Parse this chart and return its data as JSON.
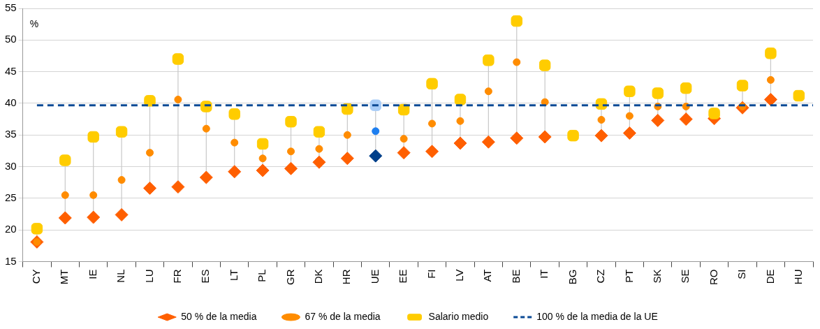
{
  "chart_data": {
    "type": "scatter",
    "ylabel": "%",
    "categories": [
      "CY",
      "MT",
      "IE",
      "NL",
      "LU",
      "FR",
      "ES",
      "LT",
      "PL",
      "GR",
      "DK",
      "HR",
      "UE",
      "EE",
      "FI",
      "LV",
      "AT",
      "BE",
      "IT",
      "BG",
      "CZ",
      "PT",
      "SK",
      "SE",
      "RO",
      "SI",
      "DE",
      "HU"
    ],
    "series": [
      {
        "name": "50 % de la media",
        "color": "#ff5f00",
        "marker": "diamond",
        "colors": [
          "#ff5f00",
          "#ff5f00",
          "#ff5f00",
          "#ff5f00",
          "#ff5f00",
          "#ff5f00",
          "#ff5f00",
          "#ff5f00",
          "#ff5f00",
          "#ff5f00",
          "#ff5f00",
          "#ff5f00",
          "#003f8a",
          "#ff5f00",
          "#ff5f00",
          "#ff5f00",
          "#ff5f00",
          "#ff5f00",
          "#ff5f00",
          "#ff5f00",
          "#ff5f00",
          "#ff5f00",
          "#ff5f00",
          "#ff5f00",
          "#ff5f00",
          "#ff5f00",
          "#ff5f00",
          "#ff5f00"
        ],
        "values": [
          18.1,
          21.9,
          22.0,
          22.4,
          26.6,
          26.8,
          28.3,
          29.2,
          29.4,
          29.7,
          30.7,
          31.3,
          31.7,
          32.2,
          32.4,
          33.7,
          33.9,
          34.5,
          34.7,
          null,
          34.9,
          35.3,
          37.3,
          37.5,
          37.6,
          39.3,
          40.6,
          null
        ]
      },
      {
        "name": "67 % de la media",
        "color": "#ff8c00",
        "marker": "circle",
        "colors": [
          "#ff8c00",
          "#ff8c00",
          "#ff8c00",
          "#ff8c00",
          "#ff8c00",
          "#ff8c00",
          "#ff8c00",
          "#ff8c00",
          "#ff8c00",
          "#ff8c00",
          "#ff8c00",
          "#ff8c00",
          "#1e7ff0",
          "#ff8c00",
          "#ff8c00",
          "#ff8c00",
          "#ff8c00",
          "#ff8c00",
          "#ff8c00",
          "#ff8c00",
          "#ff8c00",
          "#ff8c00",
          "#ff8c00",
          "#ff8c00",
          "#ff8c00",
          "#ff8c00",
          "#ff8c00",
          "#ff8c00"
        ],
        "values": [
          18.1,
          25.5,
          25.5,
          27.9,
          32.2,
          40.6,
          36.0,
          33.8,
          31.3,
          32.4,
          32.8,
          35.0,
          35.6,
          34.4,
          36.8,
          37.2,
          41.9,
          46.5,
          40.2,
          null,
          37.4,
          38.0,
          39.5,
          39.5,
          null,
          39.5,
          43.7,
          null
        ]
      },
      {
        "name": "Salario medio",
        "color": "#ffcc00",
        "marker": "square",
        "colors": [
          "#ffcc00",
          "#ffcc00",
          "#ffcc00",
          "#ffcc00",
          "#ffcc00",
          "#ffcc00",
          "#ffcc00",
          "#ffcc00",
          "#ffcc00",
          "#ffcc00",
          "#ffcc00",
          "#ffcc00",
          "#a9cdf8",
          "#ffcc00",
          "#ffcc00",
          "#ffcc00",
          "#ffcc00",
          "#ffcc00",
          "#ffcc00",
          "#ffcc00",
          "#ffcc00",
          "#ffcc00",
          "#ffcc00",
          "#ffcc00",
          "#ffcc00",
          "#ffcc00",
          "#ffcc00",
          "#ffcc00"
        ],
        "values": [
          20.2,
          31.0,
          34.7,
          35.5,
          40.4,
          47.0,
          39.5,
          38.3,
          33.6,
          37.1,
          35.5,
          39.1,
          39.7,
          39.0,
          43.1,
          40.6,
          46.8,
          53.0,
          46.0,
          34.9,
          39.9,
          41.9,
          41.6,
          42.4,
          38.4,
          42.8,
          47.9,
          41.2
        ]
      }
    ],
    "ref_lines": [
      {
        "axis": "y",
        "value": 39.7,
        "label": "100 % de la media de la UE",
        "color": "#0b4a95",
        "line_style": "dashed"
      }
    ],
    "ylim": [
      15,
      55
    ],
    "yticks": [
      15,
      20,
      25,
      30,
      35,
      40,
      45,
      50,
      55
    ],
    "grid": "y",
    "legend": "bottom"
  }
}
